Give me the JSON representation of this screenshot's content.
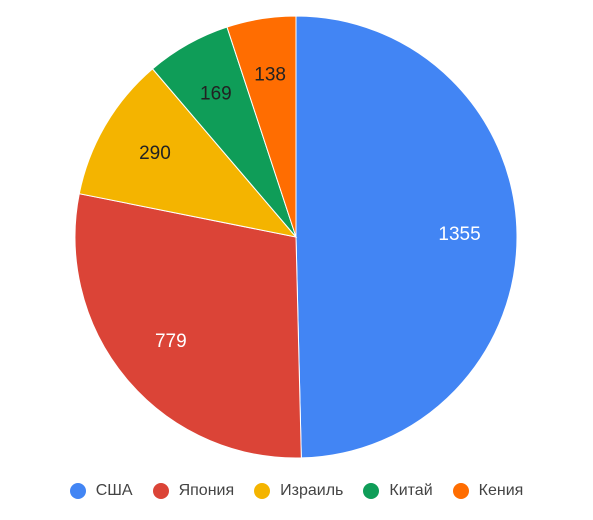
{
  "chart_data": {
    "type": "pie",
    "categories": [
      "США",
      "Япония",
      "Израиль",
      "Китай",
      "Кения"
    ],
    "values": [
      1355,
      779,
      290,
      169,
      138
    ],
    "colors": [
      "#4285F4",
      "#DB4437",
      "#F4B400",
      "#0F9D58",
      "#FF6D01"
    ],
    "label_colors": [
      "#ffffff",
      "#ffffff",
      "#222222",
      "#222222",
      "#222222"
    ],
    "legend_position": "bottom",
    "start": "top",
    "direction": "clockwise"
  }
}
